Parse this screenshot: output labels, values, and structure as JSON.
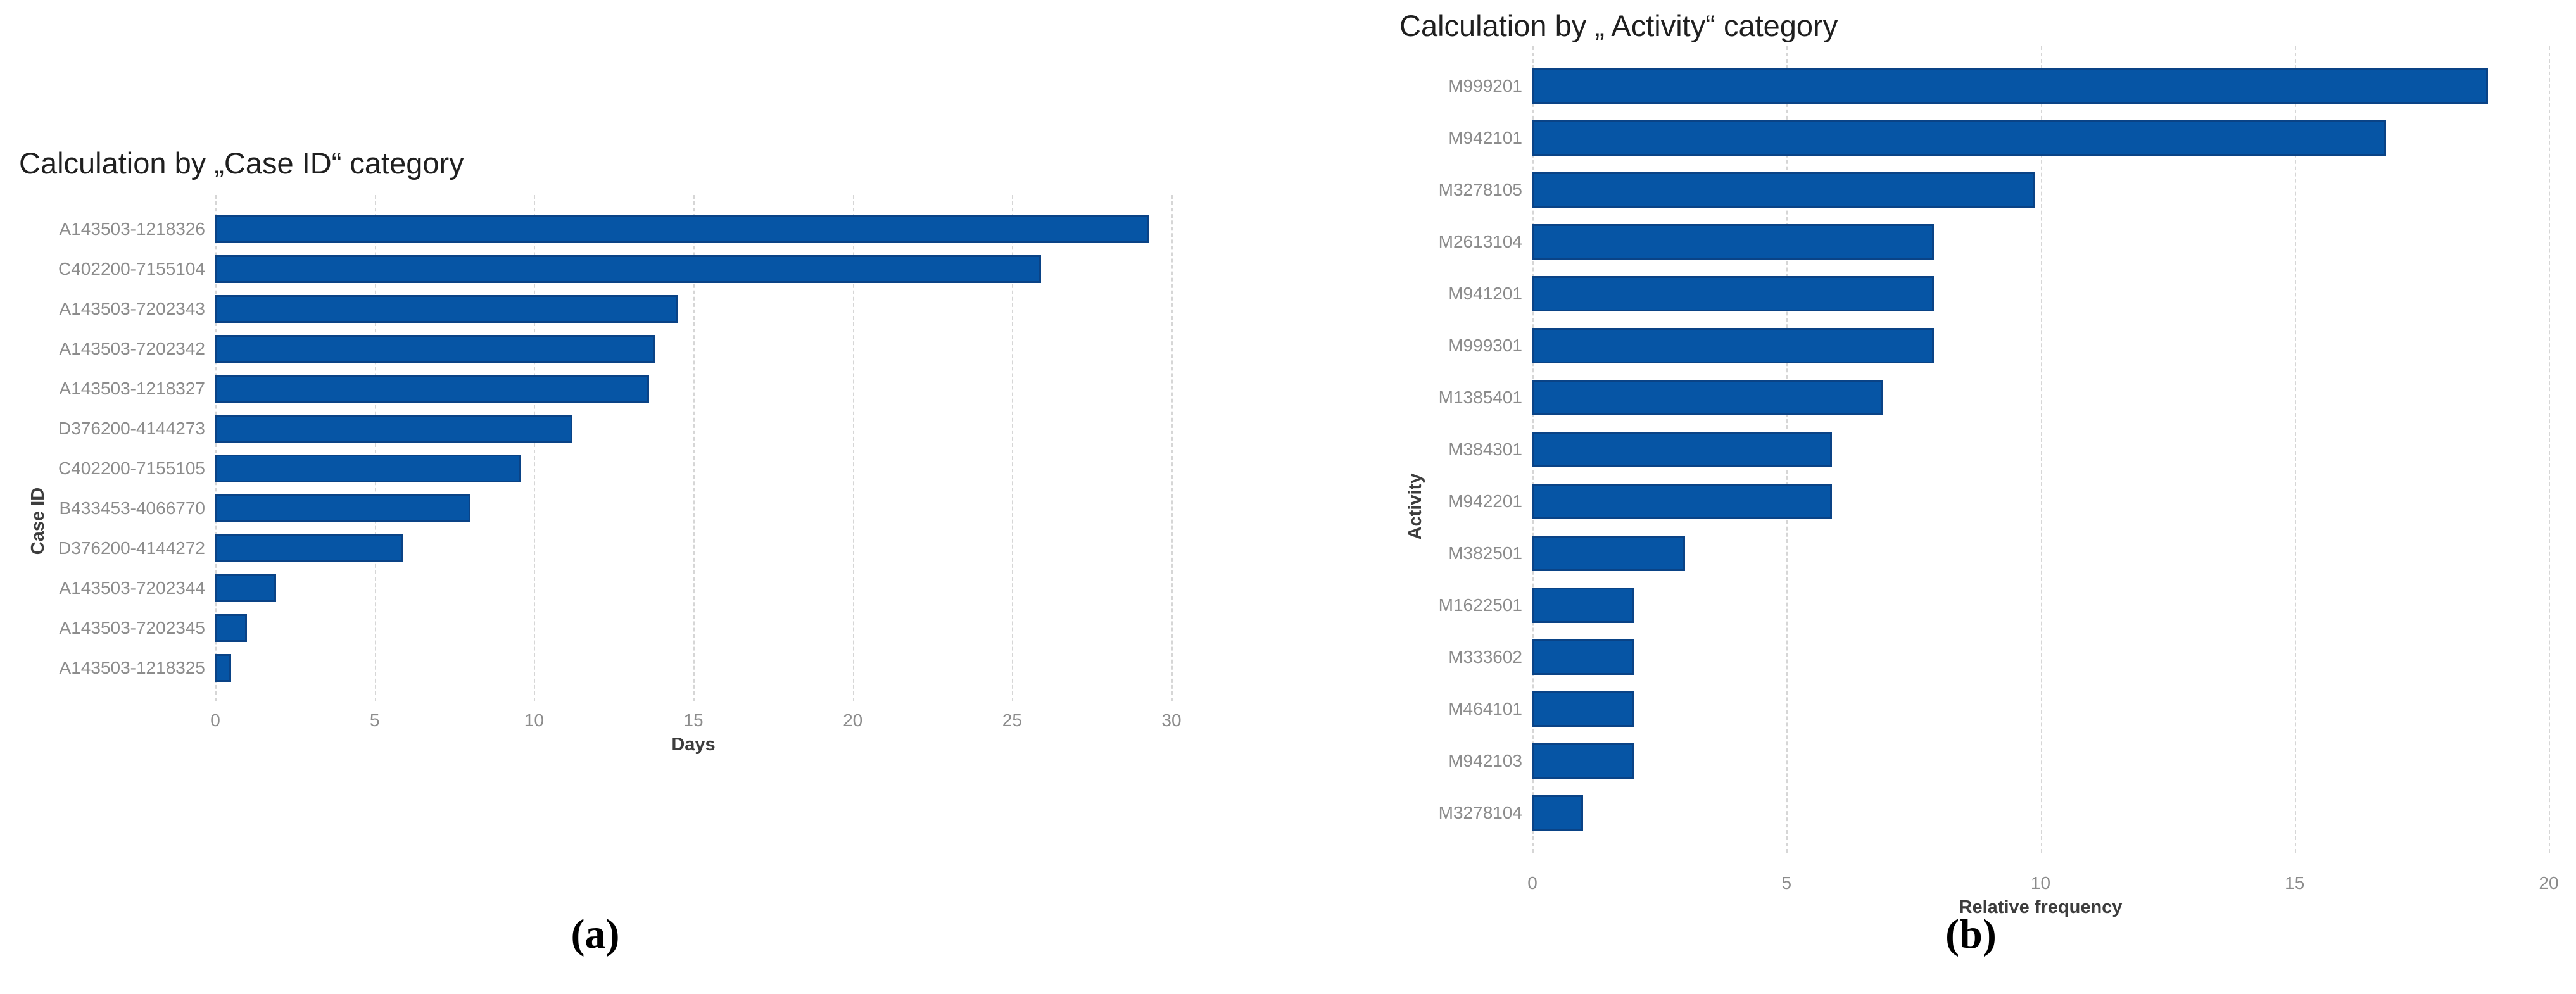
{
  "captions": {
    "a": "(a)",
    "b": "(b)"
  },
  "chart_data": [
    {
      "type": "bar",
      "orientation": "horizontal",
      "title": "Calculation by „Case ID“ category",
      "xlabel": "Days",
      "ylabel": "Case ID",
      "categories": [
        "A143503-1218326",
        "C402200-7155104",
        "A143503-7202343",
        "A143503-7202342",
        "A143503-1218327",
        "D376200-4144273",
        "C402200-7155105",
        "B433453-4066770",
        "D376200-4144272",
        "A143503-7202344",
        "A143503-7202345",
        "A143503-1218325"
      ],
      "values": [
        29.3,
        25.9,
        14.5,
        13.8,
        13.6,
        11.2,
        9.6,
        8.0,
        5.9,
        1.9,
        1.0,
        0.5
      ],
      "xlim": [
        0,
        30
      ],
      "x_ticks": [
        0,
        5,
        10,
        15,
        20,
        25,
        30
      ],
      "grid": "vertical-dashed",
      "legend": "none",
      "bar_color": "#0655a5",
      "bar_edge_color": "#0a4386"
    },
    {
      "type": "bar",
      "orientation": "horizontal",
      "title": "Calculation by „ Activity“ category",
      "xlabel": "Relative frequency",
      "ylabel": "Activity",
      "categories": [
        "M999201",
        "M942101",
        "M3278105",
        "M2613104",
        "M941201",
        "M999301",
        "M1385401",
        "M384301",
        "M942201",
        "M382501",
        "M1622501",
        "M333602",
        "M464101",
        "M942103",
        "M3278104"
      ],
      "values": [
        18.8,
        16.8,
        9.9,
        7.9,
        7.9,
        7.9,
        6.9,
        5.9,
        5.9,
        3.0,
        2.0,
        2.0,
        2.0,
        2.0,
        1.0
      ],
      "xlim": [
        0,
        20
      ],
      "x_ticks": [
        0,
        5,
        10,
        15,
        20
      ],
      "grid": "vertical-dashed",
      "legend": "none",
      "bar_color": "#0655a5",
      "bar_edge_color": "#0a4386"
    }
  ]
}
